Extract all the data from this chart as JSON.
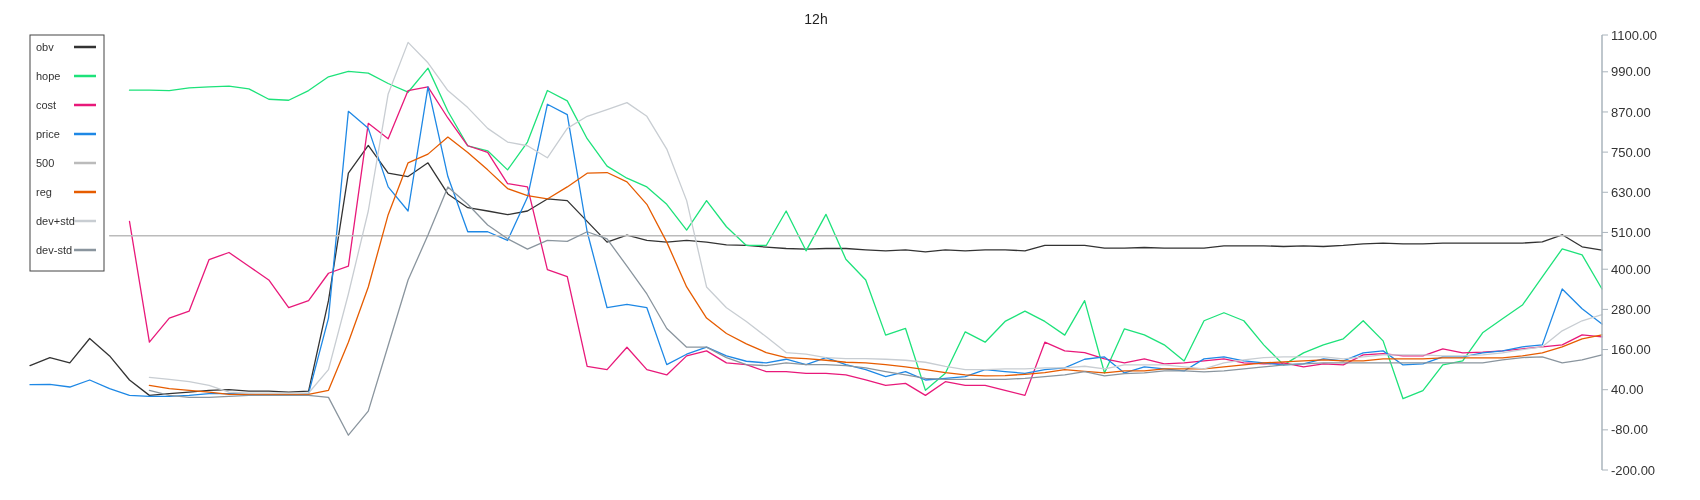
{
  "chart_data": {
    "type": "line",
    "title": "12h",
    "categories": [
      null,
      null,
      null,
      null,
      null,
      null,
      null,
      null,
      null,
      null,
      null,
      null,
      null,
      null,
      null,
      null,
      null,
      null,
      null,
      null,
      null,
      null,
      null,
      null,
      null,
      null,
      null,
      null,
      null,
      null,
      null,
      null,
      null,
      null,
      null,
      null,
      null,
      null,
      null,
      null,
      null,
      null,
      null,
      null,
      null,
      null,
      null,
      null,
      null,
      null,
      null,
      null,
      null,
      null,
      null,
      null,
      null,
      null,
      null,
      null,
      null,
      null,
      null,
      null,
      null,
      null,
      null,
      null,
      null,
      null,
      null,
      null,
      null,
      null,
      null,
      null,
      null,
      null,
      null,
      null
    ],
    "ylim": [
      -200,
      1100
    ],
    "yticks": [
      {
        "value": -200,
        "label": "-200.00"
      },
      {
        "value": -80,
        "label": "-80.00"
      },
      {
        "value": 40,
        "label": "40.00"
      },
      {
        "value": 160,
        "label": "160.00"
      },
      {
        "value": 280,
        "label": "280.00"
      },
      {
        "value": 400,
        "label": "400.00"
      },
      {
        "value": 510,
        "label": "510.00"
      },
      {
        "value": 630,
        "label": "630.00"
      },
      {
        "value": 750,
        "label": "750.00"
      },
      {
        "value": 870,
        "label": "870.00"
      },
      {
        "value": 990,
        "label": "990.00"
      },
      {
        "value": 1100,
        "label": "1100.00"
      }
    ],
    "tick_labels": "y",
    "legend": "top left",
    "series": [
      {
        "name": "obv",
        "color": "#333333",
        "values": [
          112,
          136,
          120,
          193,
          141,
          69,
          23,
          28,
          33,
          38,
          40,
          36,
          36,
          33,
          36,
          306,
          687,
          770,
          687,
          677,
          718,
          625,
          584,
          574,
          563,
          574,
          610,
          605,
          543,
          481,
          502,
          486,
          481,
          486,
          481,
          473,
          471,
          466,
          462,
          460,
          462,
          462,
          458,
          455,
          458,
          452,
          458,
          455,
          458,
          458,
          455,
          471,
          471,
          471,
          463,
          463,
          465,
          463,
          463,
          463,
          470,
          470,
          470,
          468,
          470,
          468,
          471,
          476,
          478,
          476,
          476,
          478,
          478,
          478,
          478,
          478,
          482,
          503,
          467,
          457
        ]
      },
      {
        "name": "hope",
        "color": "#1de27a",
        "values": [
          null,
          null,
          null,
          null,
          null,
          935,
          935,
          934,
          942,
          945,
          947,
          939,
          908,
          905,
          934,
          975,
          991,
          986,
          955,
          929,
          1001,
          872,
          769,
          754,
          697,
          780,
          934,
          903,
          790,
          708,
          672,
          646,
          594,
          517,
          605,
          527,
          471,
          471,
          574,
          455,
          564,
          430,
          368,
          203,
          223,
          38,
          89,
          213,
          182,
          244,
          275,
          244,
          203,
          306,
          90,
          222,
          204,
          174,
          126,
          246,
          270,
          246,
          174,
          114,
          150,
          174,
          192,
          246,
          186,
          13,
          37,
          114,
          126,
          210,
          252,
          293,
          377,
          461,
          443,
          341
        ]
      },
      {
        "name": "cost",
        "color": "#e8197a",
        "values": [
          null,
          null,
          null,
          null,
          null,
          543,
          182,
          254,
          275,
          429,
          450,
          409,
          368,
          285,
          306,
          388,
          409,
          836,
          790,
          934,
          945,
          852,
          769,
          749,
          656,
          646,
          399,
          378,
          110,
          100,
          167,
          100,
          84,
          141,
          156,
          120,
          115,
          94,
          94,
          89,
          89,
          84,
          69,
          53,
          59,
          23,
          64,
          53,
          53,
          38,
          23,
          182,
          156,
          151,
          132,
          120,
          132,
          117,
          120,
          126,
          132,
          120,
          117,
          120,
          108,
          117,
          114,
          144,
          148,
          141,
          141,
          162,
          150,
          152,
          156,
          162,
          168,
          174,
          204,
          198
        ]
      },
      {
        "name": "price",
        "color": "#1e88e5",
        "values": [
          55,
          56,
          48,
          69,
          43,
          23,
          20,
          20,
          23,
          28,
          28,
          26,
          23,
          23,
          28,
          254,
          872,
          821,
          646,
          574,
          945,
          677,
          512,
          512,
          486,
          615,
          893,
          862,
          512,
          285,
          295,
          285,
          115,
          146,
          167,
          141,
          125,
          120,
          131,
          115,
          136,
          115,
          100,
          79,
          94,
          69,
          74,
          79,
          100,
          94,
          89,
          100,
          105,
          131,
          138,
          90,
          108,
          102,
          96,
          132,
          138,
          126,
          120,
          114,
          117,
          132,
          126,
          150,
          156,
          114,
          117,
          138,
          138,
          150,
          156,
          168,
          174,
          341,
          282,
          236
        ]
      },
      {
        "name": "500",
        "color": "#bbbbbb",
        "values": [
          null,
          null,
          null,
          null,
          500,
          500,
          500,
          500,
          500,
          500,
          500,
          500,
          500,
          500,
          500,
          500,
          500,
          500,
          500,
          500,
          500,
          500,
          500,
          500,
          500,
          500,
          500,
          500,
          500,
          500,
          500,
          500,
          500,
          500,
          500,
          500,
          500,
          500,
          500,
          500,
          500,
          500,
          500,
          500,
          500,
          500,
          500,
          500,
          500,
          500,
          500,
          500,
          500,
          500,
          500,
          500,
          500,
          500,
          500,
          500,
          500,
          500,
          500,
          500,
          500,
          500,
          500,
          500,
          500,
          500,
          500,
          500,
          500,
          500,
          500,
          500,
          500,
          500,
          500,
          500
        ]
      },
      {
        "name": "reg",
        "color": "#e65c00",
        "values": [
          null,
          null,
          null,
          null,
          null,
          null,
          53,
          43,
          38,
          33,
          26,
          26,
          26,
          26,
          26,
          38,
          182,
          347,
          563,
          718,
          744,
          795,
          749,
          697,
          641,
          620,
          610,
          646,
          687,
          689,
          661,
          594,
          481,
          347,
          254,
          208,
          177,
          151,
          136,
          133,
          128,
          122,
          120,
          115,
          108,
          100,
          91,
          84,
          81,
          82,
          86,
          91,
          100,
          95,
          90,
          96,
          96,
          102,
          102,
          102,
          108,
          114,
          120,
          123,
          126,
          129,
          126,
          126,
          132,
          132,
          132,
          135,
          135,
          135,
          135,
          141,
          150,
          168,
          192,
          204
        ]
      },
      {
        "name": "dev+std",
        "color": "#c8cdd2",
        "values": [
          null,
          null,
          null,
          null,
          null,
          null,
          77,
          71,
          64,
          53,
          33,
          30,
          30,
          30,
          30,
          100,
          326,
          574,
          924,
          1078,
          1017,
          934,
          883,
          821,
          780,
          769,
          733,
          821,
          857,
          877,
          898,
          857,
          759,
          605,
          347,
          285,
          244,
          198,
          151,
          146,
          136,
          133,
          133,
          131,
          128,
          122,
          110,
          100,
          100,
          102,
          102,
          105,
          105,
          110,
          102,
          114,
          114,
          114,
          108,
          102,
          120,
          129,
          136,
          138,
          138,
          138,
          132,
          138,
          144,
          144,
          144,
          141,
          141,
          144,
          150,
          160,
          168,
          216,
          246,
          264
        ]
      },
      {
        "name": "dev-std",
        "color": "#8a959e",
        "values": [
          null,
          null,
          null,
          null,
          null,
          null,
          38,
          23,
          17,
          17,
          20,
          23,
          23,
          23,
          23,
          17,
          -96,
          -24,
          172,
          368,
          502,
          646,
          594,
          532,
          491,
          460,
          486,
          483,
          512,
          491,
          409,
          326,
          223,
          167,
          167,
          136,
          115,
          112,
          120,
          115,
          115,
          112,
          105,
          94,
          84,
          74,
          71,
          71,
          71,
          71,
          74,
          79,
          84,
          94,
          81,
          88,
          90,
          96,
          96,
          93,
          96,
          102,
          108,
          114,
          117,
          120,
          120,
          120,
          120,
          120,
          120,
          120,
          120,
          120,
          129,
          136,
          138,
          120,
          129,
          144
        ]
      }
    ]
  }
}
